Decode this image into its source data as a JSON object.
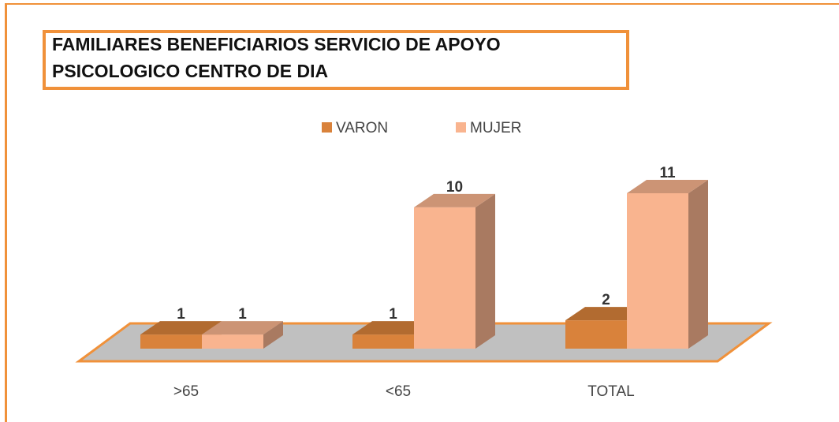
{
  "chart_data": {
    "type": "bar3d",
    "title": [
      "FAMILIARES  BENEFICIARIOS SERVICIO DE APOYO",
      "PSICOLOGICO CENTRO DE DIA"
    ],
    "categories": [
      ">65",
      "<65",
      "TOTAL"
    ],
    "series": [
      {
        "name": "VARON",
        "color": "#d9823b",
        "values": [
          1,
          1,
          2
        ]
      },
      {
        "name": "MUJER",
        "color": "#f9b48f",
        "values": [
          1,
          10,
          11
        ]
      }
    ],
    "legend": "top"
  }
}
